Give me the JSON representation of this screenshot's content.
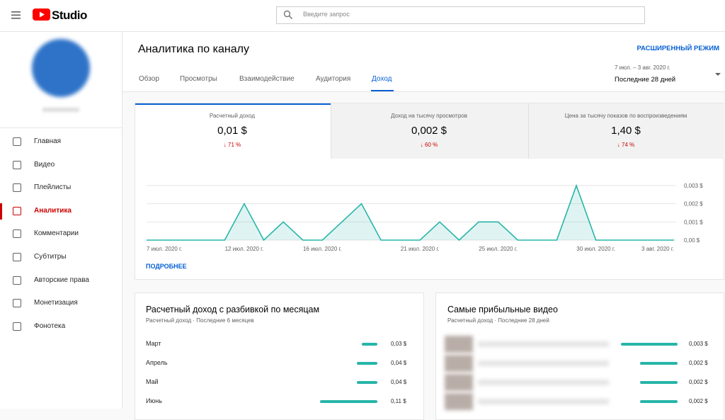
{
  "header": {
    "logo": "Studio",
    "search_placeholder": "Введите запрос"
  },
  "sidebar": {
    "items": [
      "Главная",
      "Видео",
      "Плейлисты",
      "Аналитика",
      "Комментарии",
      "Субтитры",
      "Авторские права",
      "Монетизация",
      "Фонотека"
    ]
  },
  "page": {
    "title": "Аналитика по каналу",
    "advanced_mode": "РАСШИРЕННЫЙ РЕЖИМ",
    "tabs": [
      "Обзор",
      "Просмотры",
      "Взаимодействие",
      "Аудитория",
      "Доход"
    ],
    "date_range": {
      "dates": "7 июл. – 3 авг. 2020 г.",
      "label": "Последние 28 дней"
    }
  },
  "metrics": [
    {
      "title": "Расчетный доход",
      "value": "0,01 $",
      "change": "71 %"
    },
    {
      "title": "Доход на тысячу просмотров",
      "value": "0,002 $",
      "change": "60 %"
    },
    {
      "title": "Цена за тысячу показов по воспроизведениям",
      "value": "1,40 $",
      "change": "74 %"
    }
  ],
  "chart_data": {
    "type": "area",
    "color": "#26b5a8",
    "categories": [
      "7 июл. 2020 г.",
      null,
      null,
      null,
      null,
      "12 июл. 2020 г.",
      null,
      null,
      null,
      "16 июл. 2020 г.",
      null,
      null,
      null,
      null,
      "21 июл. 2020 г.",
      null,
      null,
      null,
      "25 июл. 2020 г.",
      null,
      null,
      null,
      null,
      "30 июл. 2020 г.",
      null,
      null,
      null,
      "3 авг. 2020 г."
    ],
    "values": [
      0,
      0,
      0,
      0,
      0,
      0.002,
      0,
      0.001,
      0,
      0,
      0.001,
      0.002,
      0,
      0,
      0,
      0.001,
      0,
      0.001,
      0.001,
      0,
      0,
      0,
      0.003,
      0,
      0,
      0,
      0,
      0
    ],
    "ylim": [
      0,
      0.003
    ],
    "yticks": [
      {
        "value": 0,
        "label": "0,00 $"
      },
      {
        "value": 0.001,
        "label": "0,001 $"
      },
      {
        "value": 0.002,
        "label": "0,002 $"
      },
      {
        "value": 0.003,
        "label": "0,003 $"
      }
    ],
    "grid": true
  },
  "more_link": "ПОДРОБНЕЕ",
  "monthly": {
    "title": "Расчетный доход с разбивкой по месяцам",
    "subtitle": "Расчетный доход · Последние 6 месяцев",
    "categories": [
      "Март",
      "Апрель",
      "Май",
      "Июнь"
    ],
    "values": [
      0.03,
      0.04,
      0.04,
      0.11
    ],
    "value_labels": [
      "0,03 $",
      "0,04 $",
      "0,04 $",
      "0,11 $"
    ],
    "color": "#26b5a8"
  },
  "top_videos": {
    "title": "Самые прибыльные видео",
    "subtitle": "Расчетный доход · Последние 28 дней",
    "values": [
      0.003,
      0.002,
      0.002,
      0.002
    ],
    "value_labels": [
      "0,003 $",
      "0,002 $",
      "0,002 $",
      "0,002 $"
    ],
    "color": "#26b5a8"
  }
}
